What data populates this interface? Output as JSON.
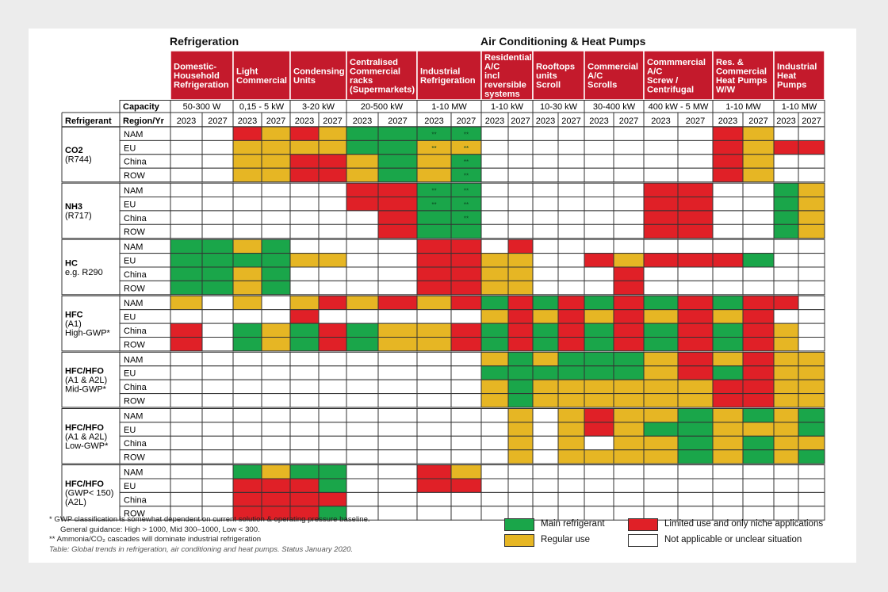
{
  "group_titles": {
    "refrigeration": "Refrigeration",
    "ac": "Air Conditioning & Heat Pumps"
  },
  "chart_data": {
    "type": "table",
    "columns": [
      {
        "name": "Domestic-Household Refrigeration",
        "capacity": "50-300 W"
      },
      {
        "name": "Light Commercial",
        "capacity": "0,15 - 5 kW"
      },
      {
        "name": "Condensing Units",
        "capacity": "3-20 kW"
      },
      {
        "name": "Centralised Commercial racks (Supermarkets)",
        "capacity": "20-500 kW"
      },
      {
        "name": "Industrial Refrigeration",
        "capacity": "1-10 MW"
      },
      {
        "name": "Residential A/C incl reversible systems",
        "capacity": "1-10 kW"
      },
      {
        "name": "Rooftops units Scroll",
        "capacity": "10-30 kW"
      },
      {
        "name": "Commercial A/C Scrolls",
        "capacity": "30-400 kW"
      },
      {
        "name": "Commmercial A/C Screw / Centrifugal",
        "capacity": "400 kW - 5 MW"
      },
      {
        "name": "Res. & Commercial Heat Pumps W/W",
        "capacity": "1-10 MW"
      },
      {
        "name": "Industrial Heat Pumps",
        "capacity": "1-10 MW"
      }
    ],
    "column_header_lines": [
      [
        "Domestic-",
        "Household",
        "Refrigeration"
      ],
      [
        "Light",
        "Commercial"
      ],
      [
        "Condensing",
        "Units"
      ],
      [
        "Centralised",
        "Commercial",
        "racks",
        "(Supermarkets)"
      ],
      [
        "Industrial",
        "Refrigeration"
      ],
      [
        "Residential",
        "A/C",
        "incl",
        "reversible",
        "systems"
      ],
      [
        "Rooftops",
        "units",
        "Scroll"
      ],
      [
        "Commercial",
        "A/C",
        "Scrolls"
      ],
      [
        "Commmercial",
        "A/C",
        "Screw /",
        "Centrifugal"
      ],
      [
        "Res. &",
        "Commercial",
        "Heat Pumps",
        "W/W"
      ],
      [
        "Industrial",
        "Heat",
        "Pumps"
      ]
    ],
    "capacity_label": "Capacity",
    "refrigerant_label": "Refrigerant",
    "region_label": "Region/Yr",
    "years": [
      "2023",
      "2027"
    ],
    "regions": [
      "NAM",
      "EU",
      "China",
      "ROW"
    ],
    "legend": {
      "G": "Main refrigerant",
      "Y": "Regular use",
      "R": "Limited use and only niche applications",
      "W": "Not applicable or unclear situation"
    },
    "colors": {
      "G": "#1aa64a",
      "Y": "#e6b624",
      "R": "#e02027",
      "W": "#ffffff",
      "header": "#c41a2c",
      "border": "#333333"
    },
    "marker_text": "**",
    "groups": [
      {
        "name": "CO2",
        "sub": [
          "(R744)"
        ],
        "rows": [
          [
            "WWRYRYGGG*G*WWWWWWWWRYWW",
            2
          ],
          [
            "WWYYYYGGY*Y*WWWWWWWWRYRR",
            2
          ],
          [
            "WWYYRRYGYG*WWWWWWWWRYWW",
            3
          ],
          [
            "WWYYRRYGYG*WWWWWWWWRYWW",
            4
          ]
        ]
      },
      {
        "name": "NH3",
        "sub": [
          "(R717)"
        ],
        "rows": [
          [
            "WWWWWWRRG*G*WWWWWWRRWWGY",
            1
          ],
          [
            "WWWWWWRRG*G*WWWWWWRRWWGY",
            1
          ],
          [
            "WWWWWWWRGG*WWWWWWRRWWGY",
            1
          ],
          [
            "WWWWWWWRGGWWWWWWRRWWGY",
            1
          ]
        ]
      },
      {
        "name": "HC",
        "sub": [
          "e.g. R290"
        ],
        "rows": [
          [
            "GGYGWWWWRRWRWWWWWWWWWW",
            1
          ],
          [
            "GGGGYYWWRRYYWWRYRRRGWW",
            1
          ],
          [
            "GGYGWWWWRRYYWWWRWWWWWW",
            1
          ],
          [
            "GGYGWWWWRRYYWWWRWWWWWW",
            1
          ]
        ]
      },
      {
        "name": "HFC",
        "sub": [
          "(A1)",
          "High-GWP*"
        ],
        "rows": [
          [
            "YWYWYRYRYRGRGRGRGRGRRW",
            1
          ],
          [
            "WWWWRWWWWWYRYRYRYRYRWW",
            1
          ],
          [
            "RWGYGRGYYRGRGRGRGRGRYW",
            1
          ],
          [
            "RWGYGRGYYRGRGRGRGRGRYW",
            1
          ]
        ]
      },
      {
        "name": "HFC/HFO",
        "sub": [
          "(A1 & A2L)",
          "Mid-GWP*"
        ],
        "rows": [
          [
            "WWWWWWWWWWYGYGGGYRYRYY",
            1
          ],
          [
            "WWWWWWWWWWGGGGGGYRGRYY",
            1
          ],
          [
            "WWWWWWWWWWYGYYYYYYRRYY",
            1
          ],
          [
            "WWWWWWWWWWYGYYYYYYRRYY",
            1
          ]
        ]
      },
      {
        "name": "HFC/HFO",
        "sub": [
          "(A1 & A2L)",
          "Low-GWP*"
        ],
        "rows": [
          [
            "WWWWWWWWWWWYWYRYYGYGYG",
            1
          ],
          [
            "WWWWWWWWWWWYWYRYGGYYYG",
            1
          ],
          [
            "WWWWWWWWWWWYWYWYYGYGYY",
            1
          ],
          [
            "WWWWWWWWWWWYWYYYYGYGYG",
            1
          ]
        ]
      },
      {
        "name": "HFC/HFO",
        "sub": [
          "(GWP< 150)",
          "(A2L)"
        ],
        "rows": [
          [
            "WWGYGGWWRYWWWWWWWWWWWW",
            1
          ],
          [
            "WWRRRGWWRRWWWWWWWWWWWW",
            1
          ],
          [
            "WWRRRRWWWWWWWWWWWWWWWW",
            1
          ],
          [
            "WWRRRGWWWWWWWWWWWWWWWW",
            1
          ]
        ]
      }
    ]
  },
  "footnotes": {
    "line1": "*  GWP classification is somewhat dependent on current solution & operating pressure baseline.",
    "line2": "General guidance: High > 1000, Mid 300–1000, Low < 300.",
    "line3": "** Ammonia/CO₂ cascades will dominate industrial refrigeration",
    "caption": "Table: Global trends in refrigeration, air conditioning and heat pumps. Status January 2020."
  }
}
